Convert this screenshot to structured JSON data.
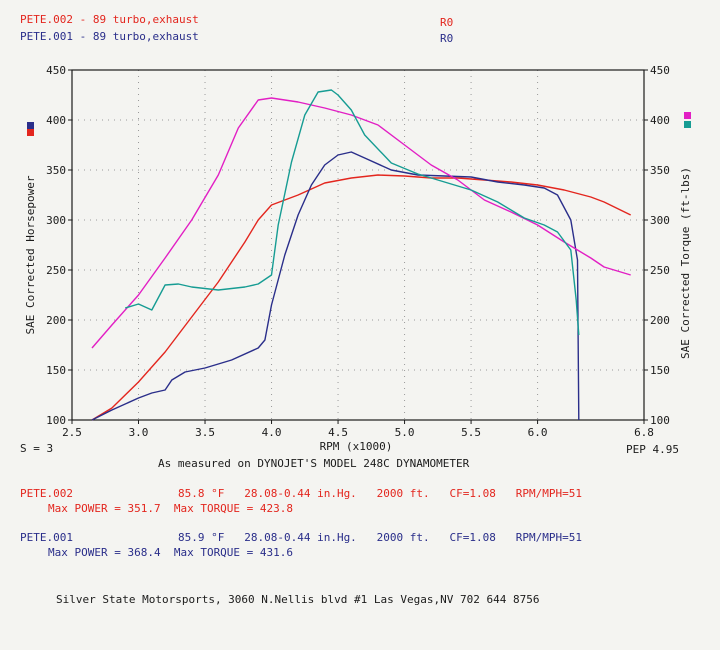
{
  "header": {
    "run1_label": "PETE.002 - 89 turbo,exhaust",
    "run1_code": "R0",
    "run2_label": "PETE.001 - 89 turbo,exhaust",
    "run2_code": "R0"
  },
  "axis_info": {
    "smoothing": "S = 3",
    "pep": "PEP 4.95",
    "measured_on": "As measured on DYNOJET'S MODEL 248C DYNAMOMETER"
  },
  "run_details": {
    "run1": {
      "name": "PETE.002",
      "conditions": "85.8 °F   28.08-0.44 in.Hg.   2000 ft.   CF=1.08   RPM/MPH=51",
      "max_line": "Max POWER = 351.7  Max TORQUE = 423.8"
    },
    "run2": {
      "name": "PETE.001",
      "conditions": "85.9 °F   28.08-0.44 in.Hg.   2000 ft.   CF=1.08   RPM/MPH=51",
      "max_line": "Max POWER = 368.4  Max TORQUE = 431.6"
    }
  },
  "footer": {
    "shop": "Silver State Motorsports, 3060 N.Nellis blvd #1 Las Vegas,NV 702 644 8756"
  },
  "colors": {
    "hp_run1": "#e3261e",
    "hp_run2": "#2a2e8a",
    "tq_run1": "#e21fc4",
    "tq_run2": "#169c93",
    "grid": "#9a9a9a",
    "axis": "#1b1b1b"
  },
  "chart_data": {
    "type": "line",
    "xlabel": "RPM (x1000)",
    "ylabel": "SAE Corrected Horsepower",
    "y2label": "SAE Corrected Torque (ft-lbs)",
    "xlim": [
      2.5,
      6.8
    ],
    "ylim": [
      100,
      450
    ],
    "y2lim": [
      100,
      450
    ],
    "x_ticks": [
      "2.5",
      "3.0",
      "3.5",
      "4.0",
      "4.5",
      "5.0",
      "5.5",
      "6.0",
      "6.8"
    ],
    "y_ticks": [
      "100",
      "150",
      "200",
      "250",
      "300",
      "350",
      "400",
      "450"
    ],
    "grid": true,
    "series": [
      {
        "name": "PETE.002",
        "measure": "horsepower",
        "axis": "left",
        "color_key": "hp_run1",
        "x": [
          2.65,
          2.8,
          3.0,
          3.2,
          3.4,
          3.6,
          3.8,
          3.9,
          4.0,
          4.2,
          4.4,
          4.6,
          4.8,
          5.0,
          5.2,
          5.4,
          5.6,
          5.8,
          6.0,
          6.2,
          6.4,
          6.5,
          6.7
        ],
        "y": [
          100,
          112,
          138,
          168,
          203,
          238,
          278,
          300,
          315,
          325,
          337,
          342,
          345,
          344,
          342,
          342,
          340,
          338,
          335,
          330,
          323,
          318,
          305
        ]
      },
      {
        "name": "PETE.001",
        "measure": "horsepower",
        "axis": "left",
        "color_key": "hp_run2",
        "x": [
          2.65,
          2.8,
          3.0,
          3.1,
          3.2,
          3.25,
          3.35,
          3.5,
          3.7,
          3.9,
          3.95,
          4.0,
          4.1,
          4.2,
          4.3,
          4.4,
          4.5,
          4.6,
          4.7,
          4.9,
          5.1,
          5.3,
          5.5,
          5.7,
          5.9,
          6.05,
          6.15,
          6.25,
          6.3,
          6.31
        ],
        "y": [
          100,
          110,
          122,
          127,
          130,
          140,
          148,
          152,
          160,
          172,
          180,
          215,
          265,
          305,
          335,
          355,
          365,
          368,
          362,
          350,
          345,
          344,
          343,
          338,
          335,
          332,
          325,
          300,
          260,
          100
        ]
      },
      {
        "name": "PETE.002",
        "measure": "torque",
        "axis": "right",
        "color_key": "tq_run1",
        "x": [
          2.65,
          2.8,
          3.0,
          3.2,
          3.4,
          3.6,
          3.75,
          3.9,
          4.0,
          4.2,
          4.4,
          4.6,
          4.8,
          5.0,
          5.2,
          5.4,
          5.6,
          5.8,
          6.0,
          6.2,
          6.4,
          6.5,
          6.7
        ],
        "y": [
          172,
          195,
          225,
          262,
          300,
          345,
          392,
          420,
          422,
          418,
          412,
          405,
          395,
          375,
          355,
          340,
          320,
          308,
          295,
          278,
          262,
          253,
          245
        ]
      },
      {
        "name": "PETE.001",
        "measure": "torque",
        "axis": "right",
        "color_key": "tq_run2",
        "x": [
          2.9,
          3.0,
          3.1,
          3.2,
          3.3,
          3.4,
          3.6,
          3.8,
          3.9,
          4.0,
          4.05,
          4.15,
          4.25,
          4.35,
          4.45,
          4.5,
          4.6,
          4.7,
          4.9,
          5.1,
          5.3,
          5.5,
          5.7,
          5.9,
          6.05,
          6.15,
          6.25,
          6.29,
          6.31
        ],
        "y": [
          212,
          216,
          210,
          235,
          236,
          233,
          230,
          233,
          236,
          245,
          295,
          358,
          405,
          428,
          430,
          425,
          410,
          385,
          357,
          346,
          338,
          330,
          318,
          302,
          295,
          288,
          270,
          220,
          185
        ]
      }
    ]
  }
}
